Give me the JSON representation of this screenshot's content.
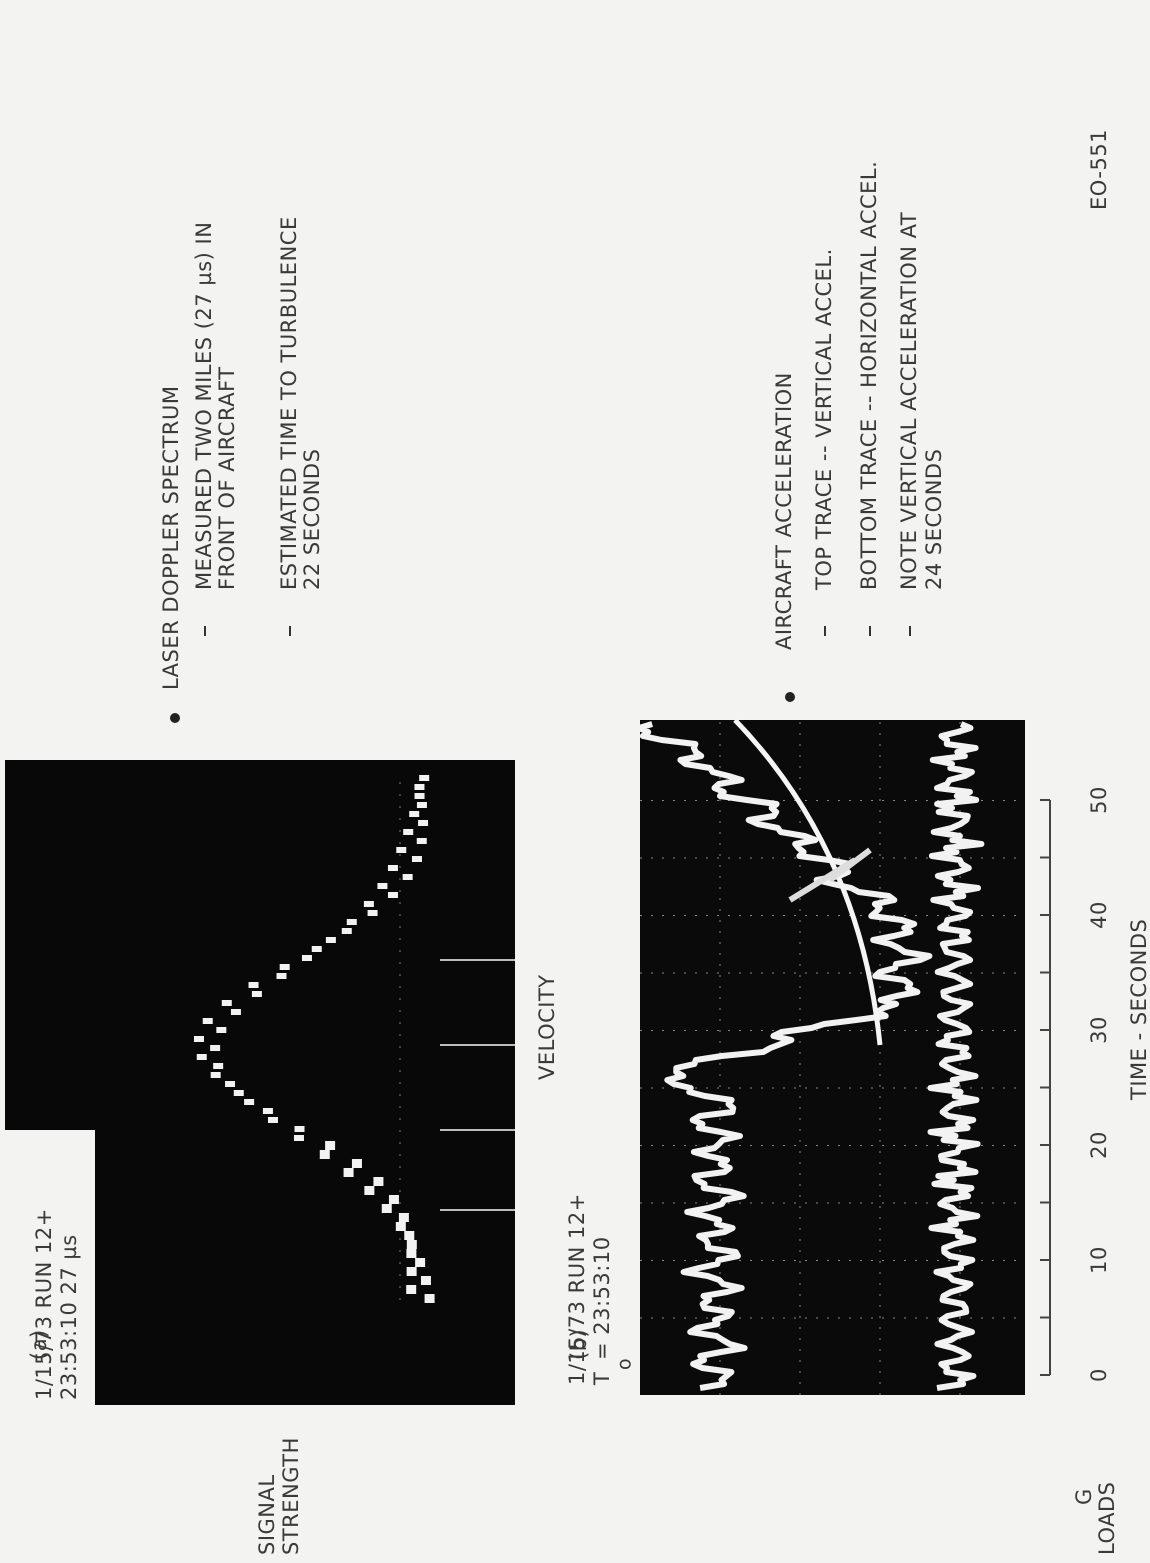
{
  "panel_a": {
    "label": "(a)",
    "caption": [
      "1/15/73 RUN 12+",
      "23:53:10 27 µs"
    ],
    "y_label": [
      "SIGNAL",
      "STRENGTH"
    ],
    "x_label": "VELOCITY"
  },
  "panel_b": {
    "label": "(b)",
    "caption": [
      "1/15/73 RUN 12+",
      "T",
      "o",
      "= 23:53:10"
    ],
    "y_label": [
      "G",
      "LOADS"
    ],
    "x_label": "TIME - SECONDS",
    "x_ticks": [
      0,
      10,
      20,
      30,
      40,
      50
    ]
  },
  "notes": [
    {
      "heading": "LASER DOPPLER SPECTRUM",
      "items": [
        [
          "MEASURED TWO MILES (27 µs) IN",
          "FRONT OF AIRCRAFT"
        ],
        [
          "ESTIMATED TIME TO TURBULENCE",
          "22 SECONDS"
        ]
      ]
    },
    {
      "heading": "AIRCRAFT ACCELERATION",
      "items": [
        [
          "TOP TRACE -- VERTICAL ACCEL."
        ],
        [
          "BOTTOM TRACE -- HORIZONTAL ACCEL."
        ],
        [
          "NOTE VERTICAL ACCELERATION AT",
          "24 SECONDS"
        ]
      ]
    }
  ],
  "figure_id": "EO-551"
}
